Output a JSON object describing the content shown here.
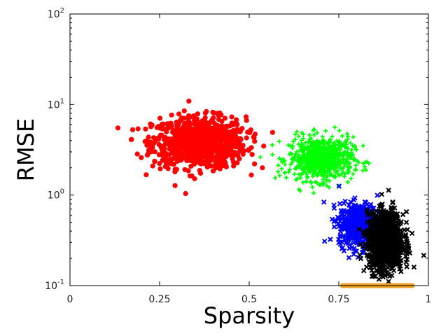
{
  "chart_data": {
    "type": "scatter",
    "xlabel": "Sparsity",
    "ylabel": "RMSE",
    "xlim": [
      0,
      1
    ],
    "ylim": [
      0.1,
      100
    ],
    "yscale": "log",
    "x_ticks": [
      "0",
      "0.25",
      "0.5",
      "0.75",
      "1"
    ],
    "x_tick_values": [
      0,
      0.25,
      0.5,
      0.75,
      1
    ],
    "y_ticks": [
      {
        "value": 0.1,
        "base": "10",
        "exp": "-1"
      },
      {
        "value": 1,
        "base": "10",
        "exp": "0"
      },
      {
        "value": 10,
        "base": "10",
        "exp": "1"
      },
      {
        "value": 100,
        "base": "10",
        "exp": "2"
      }
    ],
    "grid": false,
    "legend": "none",
    "series": [
      {
        "marker": "circle",
        "color": "#ff0000",
        "cluster": {
          "cx": 0.36,
          "sx": 0.065,
          "cy_log": 0.58,
          "sy_log": 0.14,
          "n": 900
        }
      },
      {
        "marker": "plus",
        "color": "#00ff00",
        "cluster": {
          "cx": 0.7,
          "sx": 0.045,
          "cy_log": 0.4,
          "sy_log": 0.12,
          "n": 700
        }
      },
      {
        "marker": "cross",
        "color": "#0000ff",
        "cluster": {
          "cx": 0.81,
          "sx": 0.03,
          "cy_log": -0.33,
          "sy_log": 0.12,
          "n": 600
        }
      },
      {
        "marker": "cross",
        "color": "#000000",
        "cluster": {
          "cx": 0.88,
          "sx": 0.025,
          "cy_log": -0.52,
          "sy_log": 0.16,
          "n": 1100
        }
      }
    ],
    "band": {
      "color": "#f0a020",
      "x_from": 0.76,
      "x_to": 0.955,
      "y": 0.1
    }
  }
}
